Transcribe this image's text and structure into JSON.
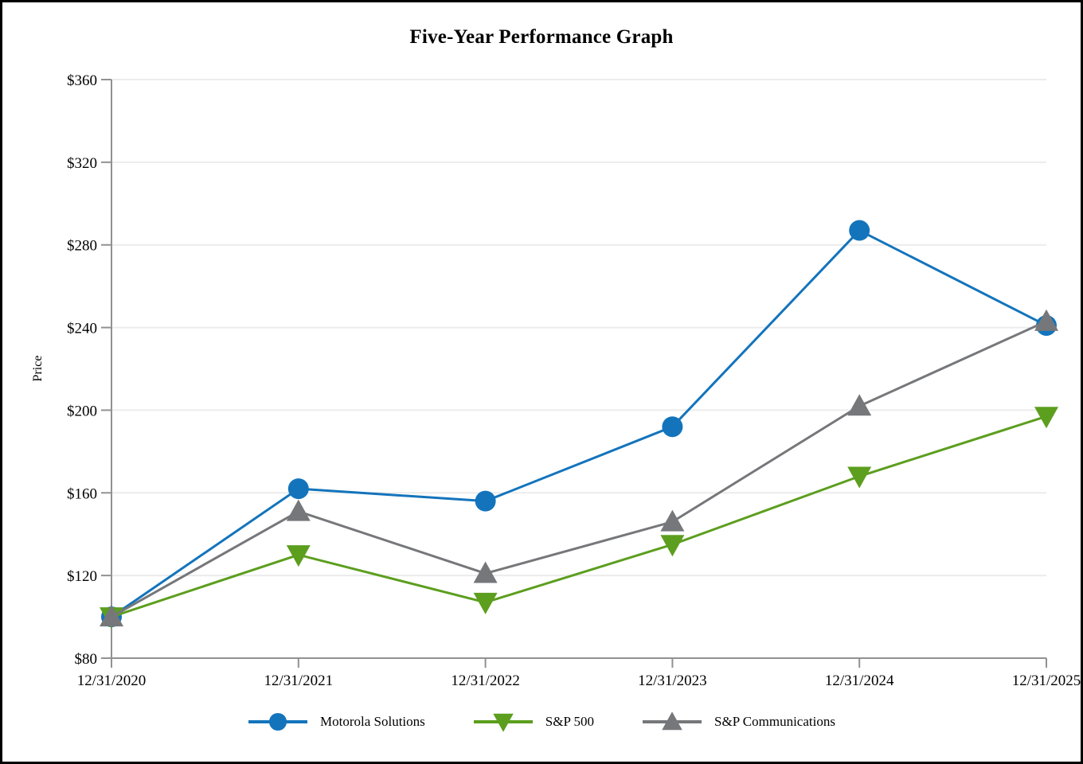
{
  "page": {
    "background": "#ffffff",
    "frame_color": "#000000",
    "text_color": "#000000"
  },
  "chart_data": {
    "type": "line",
    "title": "Five-Year Performance Graph",
    "ylabel": "Price",
    "x_labels": [
      "12/31/2020",
      "12/31/2021",
      "12/31/2022",
      "12/31/2023",
      "12/31/2024",
      "12/31/2025"
    ],
    "y_ticks": [
      80,
      120,
      160,
      200,
      240,
      280,
      320,
      360
    ],
    "y_tick_prefix": "$",
    "ylim": [
      80,
      360
    ],
    "grid": "horizontal",
    "grid_color": "#ececec",
    "axis_color": "#919191",
    "legend_position": "bottom",
    "series": [
      {
        "name": "Motorola Solutions",
        "marker": "circle",
        "color": "#1374bc",
        "values": [
          100,
          162,
          156,
          192,
          287,
          241
        ]
      },
      {
        "name": "S&P 500",
        "marker": "triangle-down",
        "color": "#5c9e1e",
        "values": [
          100,
          130,
          107,
          135,
          168,
          197
        ]
      },
      {
        "name": "S&P Communications",
        "marker": "triangle-up",
        "color": "#76777a",
        "values": [
          100,
          151,
          121,
          146,
          202,
          243
        ]
      }
    ]
  }
}
